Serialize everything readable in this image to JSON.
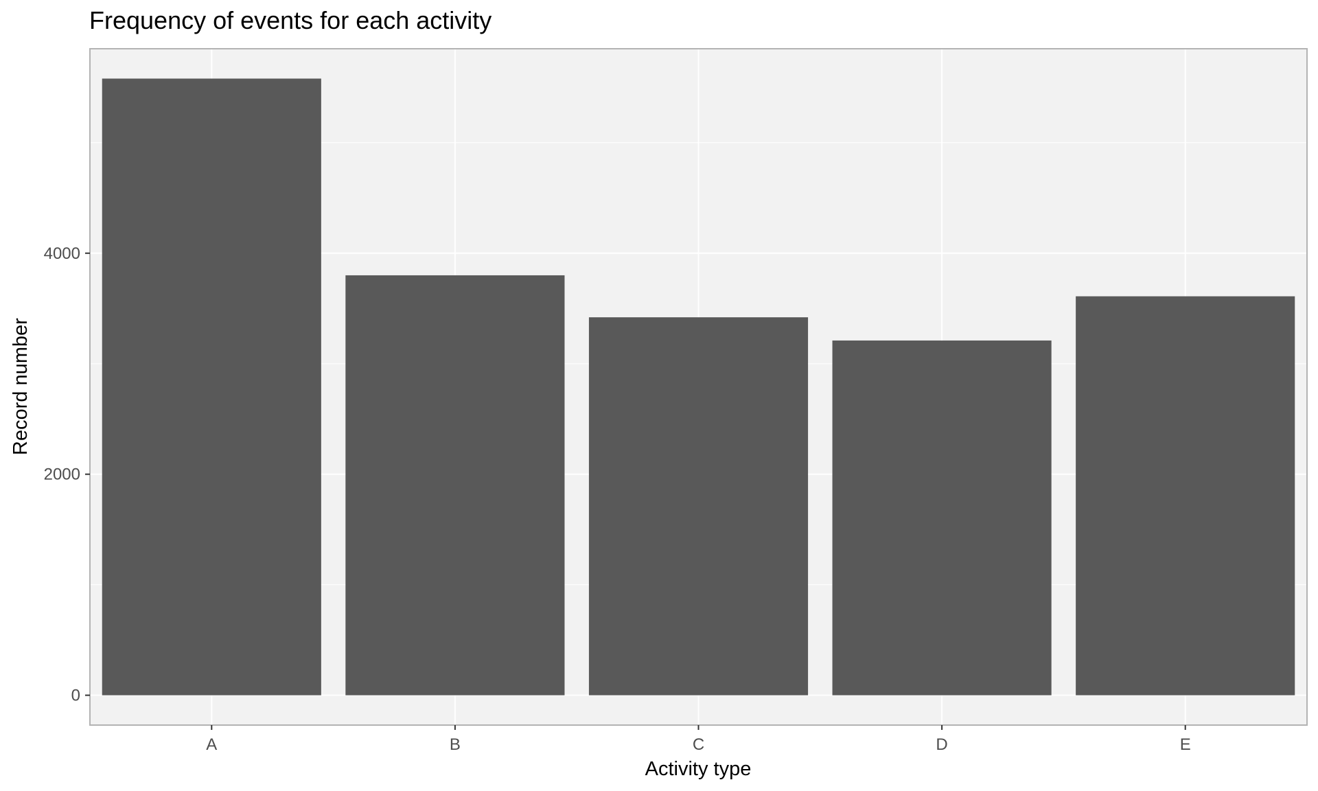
{
  "chart_data": {
    "type": "bar",
    "title": "Frequency of events for each activity",
    "xlabel": "Activity type",
    "ylabel": "Record number",
    "categories": [
      "A",
      "B",
      "C",
      "D",
      "E"
    ],
    "values": [
      5580,
      3800,
      3420,
      3210,
      3610
    ],
    "ylim": [
      -270,
      5850
    ],
    "yticks": [
      0,
      2000,
      4000
    ],
    "ytick_labels": [
      "0",
      "2000",
      "4000"
    ],
    "grid": true,
    "legend": "none",
    "colors": {
      "bar": "#595959",
      "panel_background": "#f2f2f2",
      "grid": "#ffffff",
      "panel_border": "#b3b3b3"
    }
  }
}
